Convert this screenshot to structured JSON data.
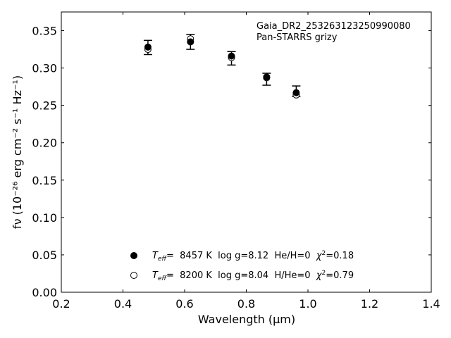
{
  "chart_data": {
    "type": "scatter",
    "xlabel": "Wavelength (μm)",
    "ylabel": "fν (10⁻²⁶ erg cm⁻² s⁻¹ Hz⁻¹)",
    "xlim": [
      0.2,
      1.4
    ],
    "ylim": [
      0.0,
      0.375
    ],
    "xticks": [
      "0.2",
      "0.4",
      "0.6",
      "0.8",
      "1.0",
      "1.2",
      "1.4"
    ],
    "yticks": [
      "0.00",
      "0.05",
      "0.10",
      "0.15",
      "0.20",
      "0.25",
      "0.30",
      "0.35"
    ],
    "grid": false,
    "annotations": [
      "Gaia_DR2_253263123250990080",
      "Pan-STARRS grizy"
    ],
    "series": [
      {
        "name": "Teff= 8457 K log g=8.12 He/H=0 χ²=0.18",
        "marker": "filled-circle",
        "x": [
          0.481,
          0.619,
          0.752,
          0.866,
          0.962
        ],
        "y": [
          0.328,
          0.335,
          0.316,
          0.288,
          0.267
        ]
      },
      {
        "name": "Teff= 8200 K log g=8.04 H/He=0 χ²=0.79",
        "marker": "open-circle",
        "x": [
          0.481,
          0.619,
          0.752,
          0.866,
          0.962
        ],
        "y": [
          0.325,
          0.339,
          0.314,
          0.287,
          0.264
        ]
      }
    ],
    "errorbars": {
      "x": [
        0.481,
        0.619,
        0.752,
        0.866,
        0.962
      ],
      "low": [
        0.318,
        0.325,
        0.304,
        0.277,
        0.262
      ],
      "high": [
        0.337,
        0.345,
        0.322,
        0.293,
        0.276
      ]
    },
    "legend": {
      "placement": "bottom-center",
      "entries": [
        {
          "teff_label": "T",
          "teff_sub": "eff",
          "text": "=  8457 K  log g=8.12  He/H=0  ",
          "chi": "χ",
          "chi_sup": "2",
          "chi_val": "=0.18"
        },
        {
          "teff_label": "T",
          "teff_sub": "eff",
          "text": "=  8200 K  log g=8.04  H/He=0  ",
          "chi": "χ",
          "chi_sup": "2",
          "chi_val": "=0.79"
        }
      ]
    }
  }
}
